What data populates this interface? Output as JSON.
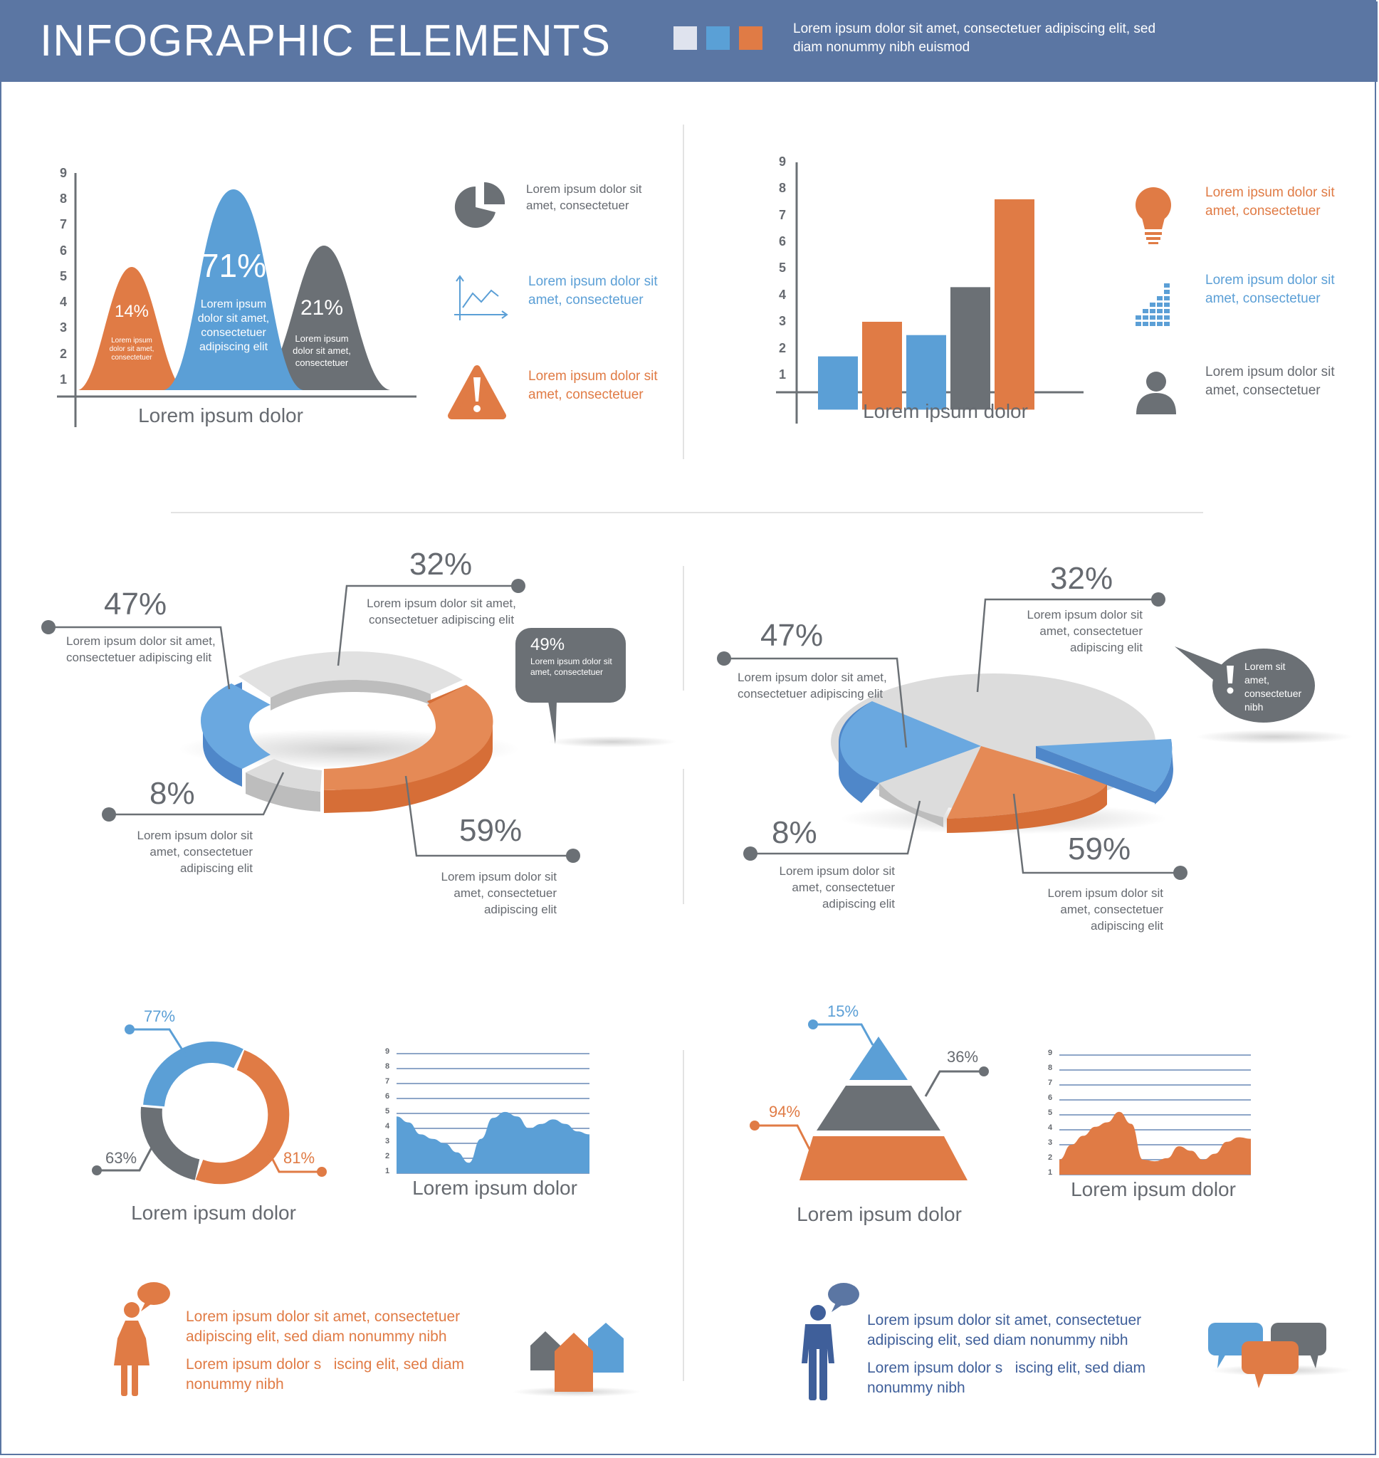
{
  "header": {
    "title": "INFOGRAPHIC ELEMENTS",
    "description": "Lorem ipsum dolor sit amet, consectetuer adipiscing elit, sed diam nonummy nibh euismod",
    "swatches": [
      "#dfe3ee",
      "#5aa0d6",
      "#e07b45"
    ]
  },
  "colors": {
    "blue": "#5b9fd6",
    "orange": "#e07b45",
    "gray": "#6b7075",
    "light": "#d9d9d9",
    "navy": "#5b76a3"
  },
  "chart_data": [
    {
      "type": "area",
      "id": "bell-curves",
      "yticks": [
        "1",
        "2",
        "3",
        "4",
        "5",
        "6",
        "7",
        "8",
        "9"
      ],
      "xlabel": "Lorem ipsum dolor",
      "series": [
        {
          "label": "14%",
          "peak": 5.0,
          "color": "#e07b45",
          "text": "Lorem ipsum dolor sit amet, consectetuer"
        },
        {
          "label": "71%",
          "peak": 8.3,
          "color": "#5b9fd6",
          "text": "Lorem ipsum dolor sit amet, consectetuer adipiscing elit"
        },
        {
          "label": "21%",
          "peak": 5.7,
          "color": "#6b7075",
          "text": "Lorem ipsum dolor sit amet, consectetuer"
        }
      ]
    },
    {
      "type": "bar",
      "id": "bars",
      "yticks": [
        "1",
        "2",
        "3",
        "4",
        "5",
        "6",
        "7",
        "8",
        "9"
      ],
      "xlabel": "Lorem ipsum dolor",
      "values": [
        2.0,
        3.3,
        2.8,
        4.6,
        7.9
      ],
      "colors": [
        "#5b9fd6",
        "#e07b45",
        "#5b9fd6",
        "#6b7075",
        "#e07b45"
      ],
      "ylim": [
        0,
        9
      ]
    },
    {
      "type": "pie",
      "id": "donut-3d",
      "slices": [
        {
          "label": "47%",
          "text": "Lorem ipsum dolor sit amet, consectetuer adipiscing elit",
          "color": "#5b9fd6"
        },
        {
          "label": "32%",
          "text": "Lorem ipsum dolor sit amet, consectetuer adipiscing elit",
          "color": "#d9d9d9"
        },
        {
          "label": "8%",
          "text": "Lorem ipsum dolor sit amet, consectetuer adipiscing elit",
          "color": "#d9d9d9"
        },
        {
          "label": "59%",
          "text": "Lorem ipsum dolor sit amet, consectetuer adipiscing elit",
          "color": "#e07b45"
        }
      ],
      "callout": {
        "label": "49%",
        "text": "Lorem ipsum dolor sit amet, consectetuer"
      }
    },
    {
      "type": "pie",
      "id": "pie-3d",
      "slices": [
        {
          "label": "47%",
          "text": "Lorem ipsum dolor sit amet, consectetuer adipiscing elit",
          "color": "#5b9fd6"
        },
        {
          "label": "32%",
          "text": "Lorem ipsum dolor sit amet, consectetuer adipiscing elit",
          "color": "#d9d9d9"
        },
        {
          "label": "8%",
          "text": "Lorem ipsum dolor sit amet, consectetuer adipiscing elit",
          "color": "#d9d9d9"
        },
        {
          "label": "59%",
          "text": "Lorem ipsum dolor sit amet, consectetuer adipiscing elit",
          "color": "#e07b45"
        }
      ],
      "callout": {
        "text": "Lorem sit amet, consectetuer nibh"
      }
    },
    {
      "type": "pie",
      "id": "ring",
      "slices": [
        {
          "label": "77%",
          "color": "#5b9fd6"
        },
        {
          "label": "81%",
          "color": "#e07b45"
        },
        {
          "label": "63%",
          "color": "#6b7075"
        }
      ],
      "xlabel": "Lorem ipsum dolor"
    },
    {
      "type": "area",
      "id": "blue-area",
      "yticks": [
        "1",
        "2",
        "3",
        "4",
        "5",
        "6",
        "7",
        "8",
        "9"
      ],
      "xlabel": "Lorem ipsum dolor",
      "x": [
        0,
        1,
        2,
        3,
        4,
        5,
        6,
        7,
        8,
        9,
        10,
        11,
        12,
        13,
        14,
        15,
        16
      ],
      "y": [
        4.8,
        4.4,
        3.6,
        3.3,
        3.0,
        2.4,
        1.7,
        3.3,
        4.7,
        5.1,
        4.8,
        4.0,
        4.3,
        4.6,
        4.3,
        3.8,
        3.6
      ],
      "color": "#5b9fd6"
    },
    {
      "type": "bar",
      "id": "pyramid",
      "labels": [
        "15%",
        "36%",
        "94%"
      ],
      "colors": [
        "#5b9fd6",
        "#6b7075",
        "#e07b45"
      ],
      "xlabel": "Lorem ipsum dolor"
    },
    {
      "type": "area",
      "id": "orange-area",
      "yticks": [
        "1",
        "2",
        "3",
        "4",
        "5",
        "6",
        "7",
        "8",
        "9"
      ],
      "xlabel": "Lorem ipsum dolor",
      "x": [
        0,
        1,
        2,
        3,
        4,
        5,
        6,
        7,
        8,
        9,
        10,
        11,
        12,
        13,
        14,
        15,
        16
      ],
      "y": [
        2.0,
        3.0,
        3.6,
        4.2,
        4.5,
        5.2,
        4.4,
        2.0,
        1.9,
        2.1,
        2.9,
        2.6,
        2.0,
        2.4,
        3.2,
        3.5,
        3.4
      ],
      "color": "#e07b45"
    }
  ],
  "legend_top_left": [
    {
      "icon": "pie-icon",
      "text": "Lorem ipsum dolor sit amet, consectetuer"
    },
    {
      "icon": "line-chart-icon",
      "text": "Lorem ipsum dolor sit amet, consectetuer"
    },
    {
      "icon": "warning-icon",
      "text": "Lorem ipsum dolor sit amet, consectetuer"
    }
  ],
  "legend_top_right": [
    {
      "icon": "lightbulb-icon",
      "text": "Lorem ipsum dolor sit amet, consectetuer"
    },
    {
      "icon": "equalizer-icon",
      "text": "Lorem ipsum dolor sit amet, consectetuer"
    },
    {
      "icon": "user-icon",
      "text": "Lorem ipsum dolor sit amet, consectetuer"
    }
  ],
  "people": {
    "woman": {
      "line1": "Lorem ipsum dolor sit amet, consectetuer adipiscing elit, sed diam nonummy nibh",
      "line2": "Lorem ipsum dolor s   iscing elit, sed diam nonummy nibh"
    },
    "man": {
      "line1": "Lorem ipsum dolor sit amet, consectetuer adipiscing elit, sed diam nonummy nibh",
      "line2": "Lorem ipsum dolor s   iscing elit, sed diam nonummy nibh"
    }
  }
}
